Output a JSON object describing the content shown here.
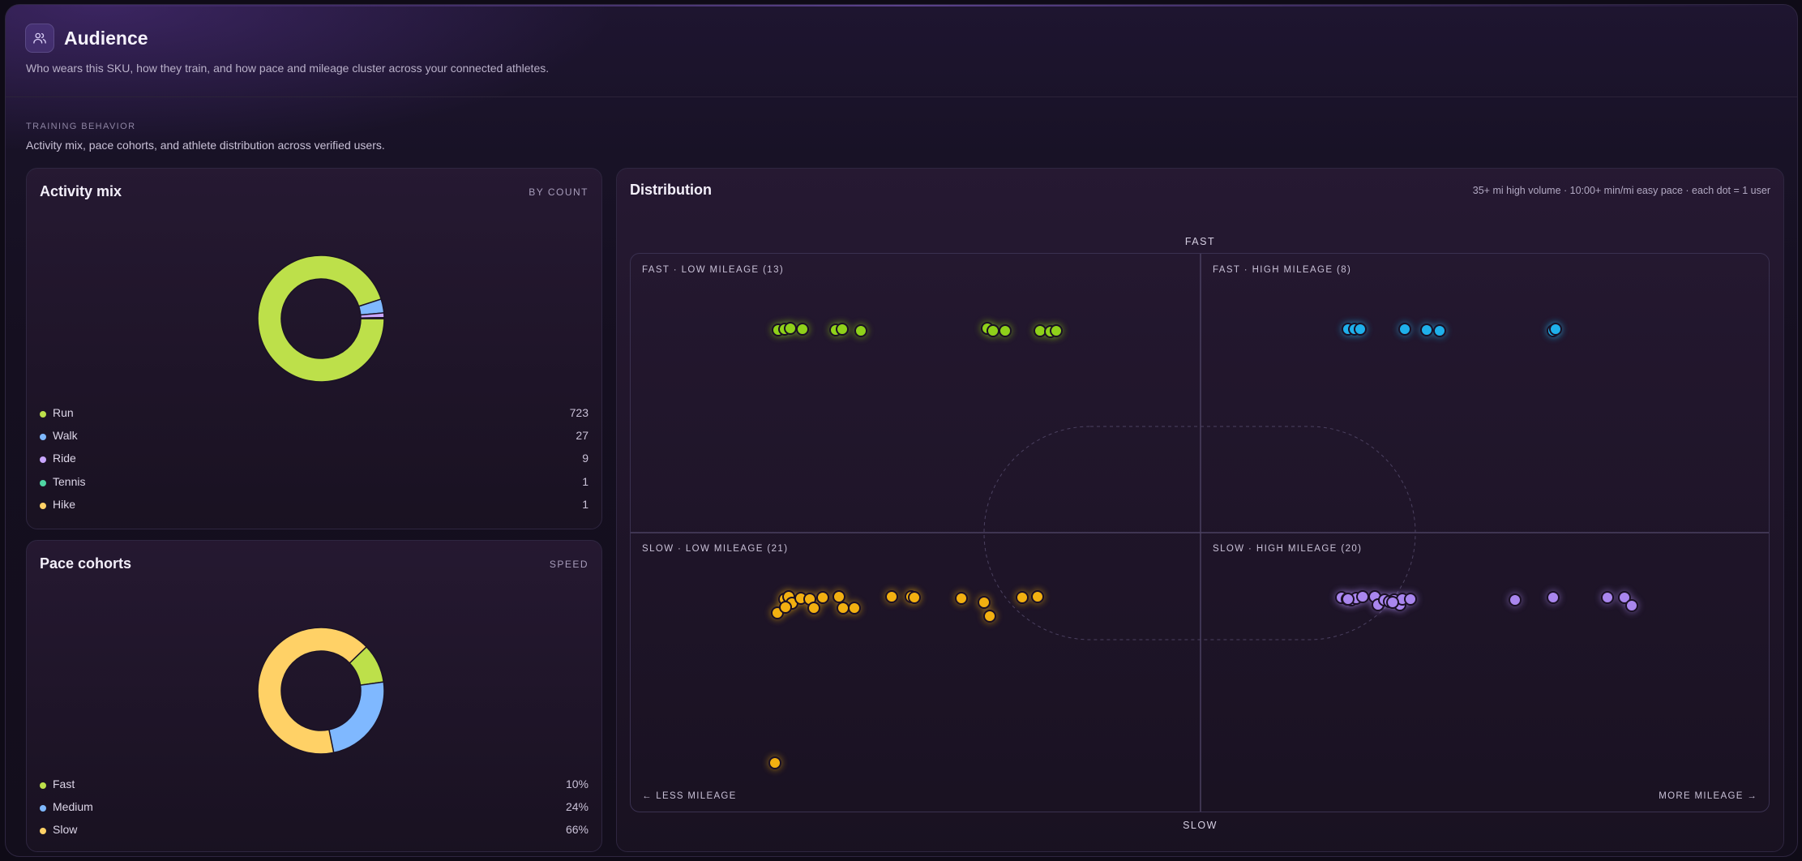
{
  "header": {
    "title": "Audience",
    "subtitle": "Who wears this SKU, how they train, and how pace and mileage cluster across your connected athletes.",
    "icon": "users-icon"
  },
  "section": {
    "label": "TRAINING BEHAVIOR",
    "description": "Activity mix, pace cohorts, and athlete distribution across verified users."
  },
  "activity_mix": {
    "title": "Activity mix",
    "tag": "BY COUNT",
    "items": [
      {
        "label": "Run",
        "value": "723",
        "count": 723,
        "color": "#bde04a"
      },
      {
        "label": "Walk",
        "value": "27",
        "count": 27,
        "color": "#7fb8ff"
      },
      {
        "label": "Ride",
        "value": "9",
        "count": 9,
        "color": "#c9a6ff"
      },
      {
        "label": "Tennis",
        "value": "1",
        "count": 1,
        "color": "#4fd6a3"
      },
      {
        "label": "Hike",
        "value": "1",
        "count": 1,
        "color": "#ffd166"
      }
    ]
  },
  "pace_cohorts": {
    "title": "Pace cohorts",
    "tag": "SPEED",
    "items": [
      {
        "label": "Fast",
        "value": "10%",
        "share": 10,
        "color": "#bde04a"
      },
      {
        "label": "Medium",
        "value": "24%",
        "share": 24,
        "color": "#7fb8ff"
      },
      {
        "label": "Slow",
        "value": "66%",
        "share": 66,
        "color": "#ffd166"
      }
    ]
  },
  "distribution": {
    "title": "Distribution",
    "note": "35+ mi high volume · 10:00+ min/mi easy pace · each dot = 1 user",
    "axis_top": "FAST",
    "axis_bottom": "SLOW",
    "axis_left": "← LESS MILEAGE",
    "axis_right": "MORE MILEAGE →",
    "quadrants": [
      {
        "label": "FAST · LOW MILEAGE (13)",
        "color": "#8fd11a"
      },
      {
        "label": "FAST · HIGH MILEAGE (8)",
        "color": "#1fb0ea"
      },
      {
        "label": "SLOW · LOW MILEAGE (21)",
        "color": "#f2b011"
      },
      {
        "label": "SLOW · HIGH MILEAGE (20)",
        "color": "#a986ee"
      }
    ]
  }
}
